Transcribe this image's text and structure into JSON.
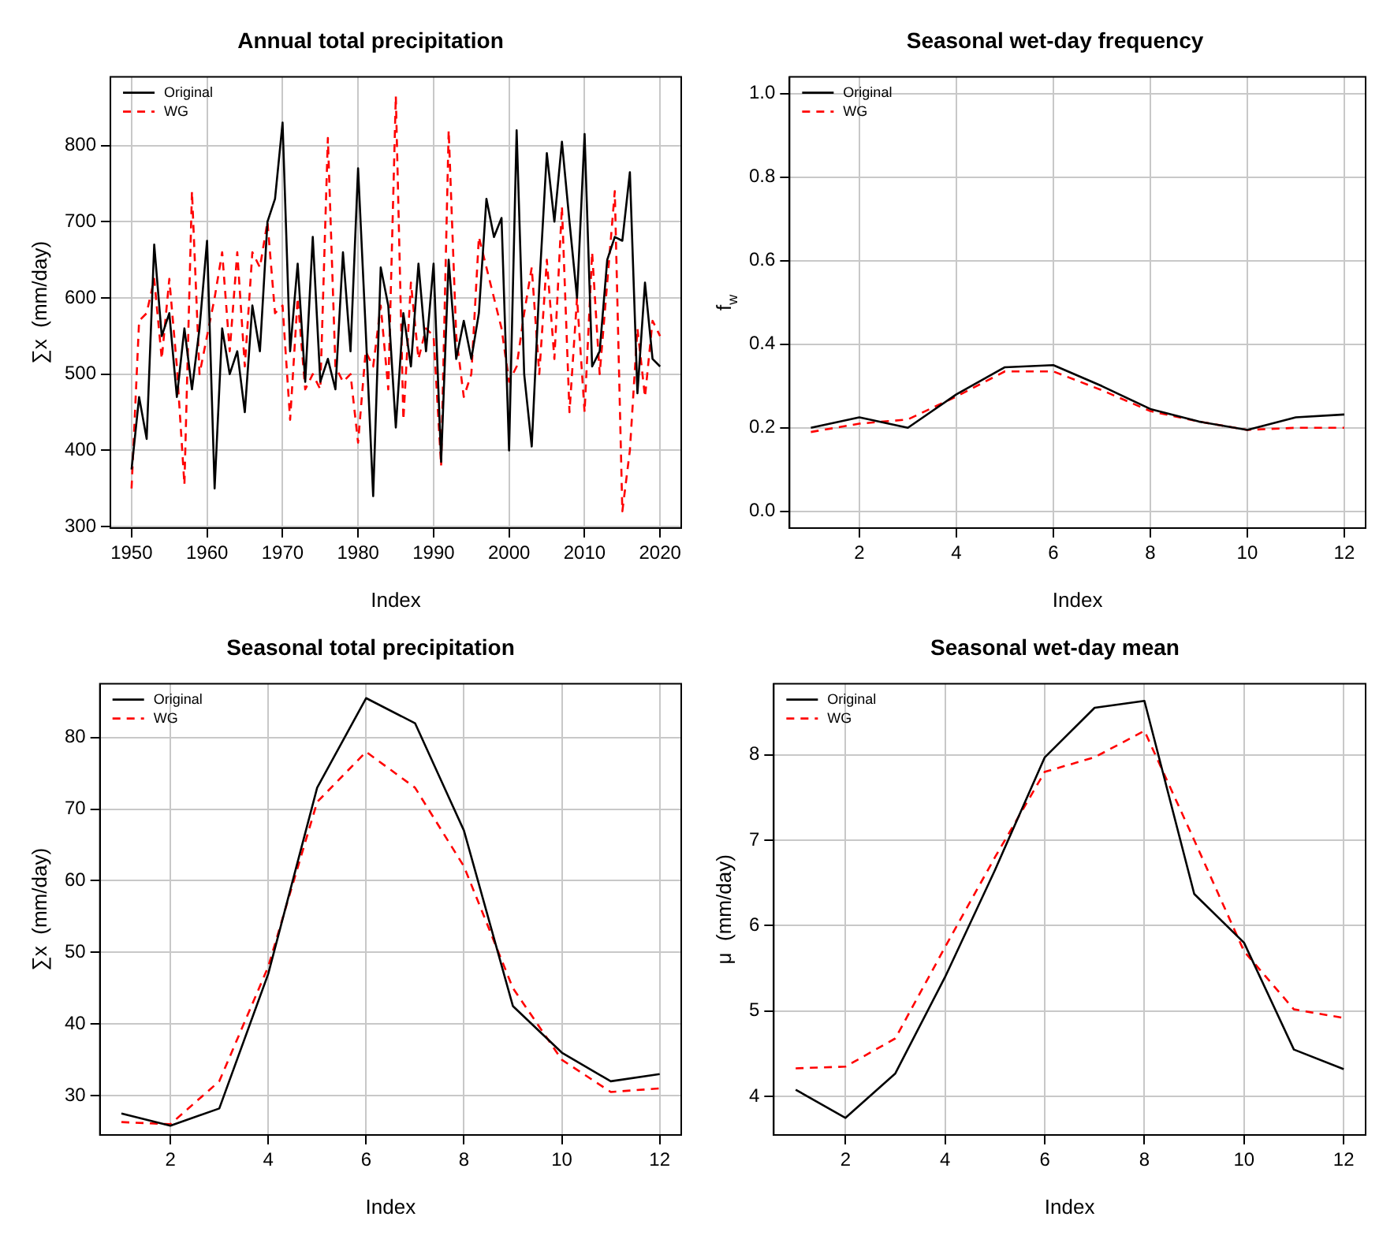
{
  "chart_data": [
    {
      "type": "line",
      "title": "Annual total precipitation",
      "xlabel": "Index",
      "ylabel": "∑x  (mm/day)",
      "legend": "top left",
      "grid": true,
      "marker": "none",
      "x": [
        1950,
        1951,
        1952,
        1953,
        1954,
        1955,
        1956,
        1957,
        1958,
        1959,
        1960,
        1961,
        1962,
        1963,
        1964,
        1965,
        1966,
        1967,
        1968,
        1969,
        1970,
        1971,
        1972,
        1973,
        1974,
        1975,
        1976,
        1977,
        1978,
        1979,
        1980,
        1981,
        1982,
        1983,
        1984,
        1985,
        1986,
        1987,
        1988,
        1989,
        1990,
        1991,
        1992,
        1993,
        1994,
        1995,
        1996,
        1997,
        1998,
        1999,
        2000,
        2001,
        2002,
        2003,
        2004,
        2005,
        2006,
        2007,
        2008,
        2009,
        2010,
        2011,
        2012,
        2013,
        2014,
        2015,
        2016,
        2017,
        2018,
        2019,
        2020
      ],
      "xlim": [
        1947.2,
        2022.8
      ],
      "xticks": [
        1950,
        1960,
        1970,
        1980,
        1990,
        2000,
        2010,
        2020
      ],
      "ylim": [
        298,
        890
      ],
      "yticks": [
        300,
        400,
        500,
        600,
        700,
        800
      ],
      "series": [
        {
          "name": "Original",
          "color": "#000000",
          "line_style": "solid",
          "values": [
            375,
            470,
            415,
            670,
            550,
            580,
            470,
            560,
            480,
            560,
            675,
            350,
            560,
            500,
            530,
            450,
            590,
            530,
            700,
            730,
            830,
            530,
            645,
            490,
            680,
            490,
            520,
            480,
            660,
            530,
            770,
            560,
            340,
            640,
            590,
            430,
            580,
            510,
            645,
            530,
            645,
            385,
            650,
            520,
            570,
            520,
            580,
            730,
            680,
            705,
            400,
            820,
            500,
            405,
            615,
            790,
            700,
            805,
            700,
            600,
            815,
            510,
            530,
            650,
            680,
            675,
            765,
            475,
            620,
            520,
            510
          ]
        },
        {
          "name": "WG",
          "color": "#ff0000",
          "line_style": "dashed",
          "values": [
            350,
            570,
            580,
            625,
            520,
            625,
            510,
            355,
            740,
            500,
            550,
            600,
            660,
            530,
            660,
            510,
            660,
            640,
            700,
            580,
            590,
            440,
            600,
            480,
            500,
            480,
            810,
            510,
            490,
            500,
            410,
            530,
            510,
            590,
            480,
            865,
            440,
            620,
            520,
            560,
            550,
            380,
            820,
            550,
            470,
            500,
            680,
            640,
            600,
            560,
            490,
            510,
            580,
            640,
            500,
            650,
            520,
            720,
            450,
            600,
            450,
            660,
            500,
            620,
            740,
            320,
            400,
            560,
            470,
            570,
            550
          ]
        }
      ]
    },
    {
      "type": "line",
      "title": "Seasonal wet-day frequency",
      "xlabel": "Index",
      "ylabel": "f$_{w}$",
      "legend": "top left",
      "grid": true,
      "marker": "none",
      "x": [
        1,
        2,
        3,
        4,
        5,
        6,
        7,
        8,
        9,
        10,
        11,
        12
      ],
      "xlim": [
        0.56,
        12.44
      ],
      "xticks": [
        2,
        4,
        6,
        8,
        10,
        12
      ],
      "ylim": [
        -0.04,
        1.04
      ],
      "yticks": [
        {
          "value": 0,
          "label": "0.0"
        },
        0.2,
        0.4,
        0.6,
        0.8,
        {
          "value": 1,
          "label": "1.0"
        }
      ],
      "series": [
        {
          "name": "Original",
          "color": "#000000",
          "line_style": "solid",
          "values": [
            0.2,
            0.225,
            0.2,
            0.28,
            0.345,
            0.35,
            0.3,
            0.245,
            0.215,
            0.195,
            0.225,
            0.232
          ]
        },
        {
          "name": "WG",
          "color": "#ff0000",
          "line_style": "dashed",
          "values": [
            0.19,
            0.21,
            0.22,
            0.275,
            0.335,
            0.335,
            0.29,
            0.24,
            0.215,
            0.195,
            0.2,
            0.2
          ]
        }
      ]
    },
    {
      "type": "line",
      "title": "Seasonal total precipitation",
      "xlabel": "Index",
      "ylabel": "∑x  (mm/day)",
      "legend": "top left",
      "grid": true,
      "marker": "none",
      "x": [
        1,
        2,
        3,
        4,
        5,
        6,
        7,
        8,
        9,
        10,
        11,
        12
      ],
      "xlim": [
        0.56,
        12.44
      ],
      "xticks": [
        2,
        4,
        6,
        8,
        10,
        12
      ],
      "ylim": [
        24.5,
        87.5
      ],
      "yticks": [
        30,
        40,
        50,
        60,
        70,
        80
      ],
      "series": [
        {
          "name": "Original",
          "color": "#000000",
          "line_style": "solid",
          "values": [
            27.5,
            25.8,
            28.2,
            47,
            73,
            85.5,
            82,
            67,
            42.5,
            36,
            32,
            33
          ]
        },
        {
          "name": "WG",
          "color": "#ff0000",
          "line_style": "dashed",
          "values": [
            26.3,
            26,
            32,
            48,
            71,
            78,
            73,
            62,
            45,
            35,
            30.5,
            31
          ]
        }
      ]
    },
    {
      "type": "line",
      "title": "Seasonal wet-day mean",
      "xlabel": "Index",
      "ylabel": "μ  (mm/day)",
      "legend": "top left",
      "grid": true,
      "marker": "none",
      "x": [
        1,
        2,
        3,
        4,
        5,
        6,
        7,
        8,
        9,
        10,
        11,
        12
      ],
      "xlim": [
        0.56,
        12.44
      ],
      "xticks": [
        2,
        4,
        6,
        8,
        10,
        12
      ],
      "ylim": [
        3.55,
        8.83
      ],
      "yticks": [
        4,
        5,
        6,
        7,
        8
      ],
      "series": [
        {
          "name": "Original",
          "color": "#000000",
          "line_style": "solid",
          "values": [
            4.08,
            3.75,
            4.27,
            5.4,
            6.65,
            7.97,
            8.55,
            8.63,
            6.37,
            5.8,
            4.55,
            4.32
          ]
        },
        {
          "name": "WG",
          "color": "#ff0000",
          "line_style": "dashed",
          "values": [
            4.33,
            4.35,
            4.68,
            5.75,
            6.8,
            7.8,
            7.97,
            8.28,
            7.0,
            5.7,
            5.02,
            4.92
          ]
        }
      ]
    }
  ]
}
